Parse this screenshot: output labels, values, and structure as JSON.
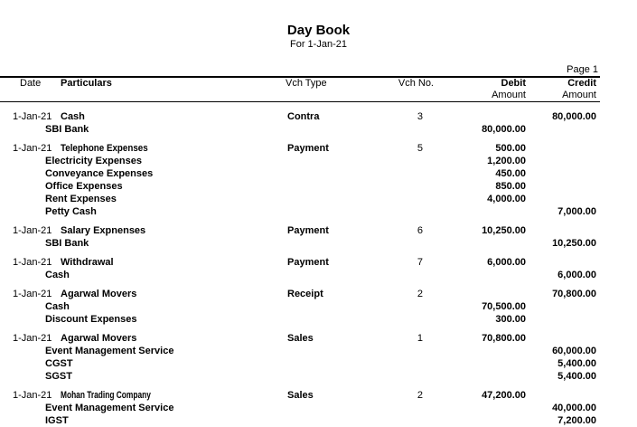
{
  "report": {
    "title": "Day Book",
    "subtitle": "For 1-Jan-21",
    "page_label": "Page 1"
  },
  "table": {
    "headers": {
      "date": "Date",
      "particulars": "Particulars",
      "vch_type": "Vch Type",
      "vch_no": "Vch No.",
      "debit": "Debit",
      "credit": "Credit",
      "amount": "Amount"
    },
    "vouchers": [
      {
        "date": "1-Jan-21",
        "particulars": "Cash",
        "vch_type": "Contra",
        "vch_no": "3",
        "debit": "",
        "credit": "80,000.00",
        "entries": [
          {
            "name": "SBI Bank",
            "debit": "80,000.00",
            "credit": ""
          }
        ]
      },
      {
        "date": "1-Jan-21",
        "particulars": "Telephone Expenses",
        "vch_type": "Payment",
        "vch_no": "5",
        "debit": "500.00",
        "credit": "",
        "entries": [
          {
            "name": "Electricity Expenses",
            "debit": "1,200.00",
            "credit": ""
          },
          {
            "name": "Conveyance Expenses",
            "debit": "450.00",
            "credit": ""
          },
          {
            "name": "Office Expenses",
            "debit": "850.00",
            "credit": ""
          },
          {
            "name": "Rent Expenses",
            "debit": "4,000.00",
            "credit": ""
          },
          {
            "name": "Petty Cash",
            "debit": "",
            "credit": "7,000.00"
          }
        ]
      },
      {
        "date": "1-Jan-21",
        "particulars": "Salary Expnenses",
        "vch_type": "Payment",
        "vch_no": "6",
        "debit": "10,250.00",
        "credit": "",
        "entries": [
          {
            "name": "SBI Bank",
            "debit": "",
            "credit": "10,250.00"
          }
        ]
      },
      {
        "date": "1-Jan-21",
        "particulars": "Withdrawal",
        "vch_type": "Payment",
        "vch_no": "7",
        "debit": "6,000.00",
        "credit": "",
        "entries": [
          {
            "name": "Cash",
            "debit": "",
            "credit": "6,000.00"
          }
        ]
      },
      {
        "date": "1-Jan-21",
        "particulars": "Agarwal Movers",
        "vch_type": "Receipt",
        "vch_no": "2",
        "debit": "",
        "credit": "70,800.00",
        "entries": [
          {
            "name": "Cash",
            "debit": "70,500.00",
            "credit": ""
          },
          {
            "name": "Discount Expenses",
            "debit": "300.00",
            "credit": ""
          }
        ]
      },
      {
        "date": "1-Jan-21",
        "particulars": "Agarwal Movers",
        "vch_type": "Sales",
        "vch_no": "1",
        "debit": "70,800.00",
        "credit": "",
        "entries": [
          {
            "name": "Event Management Service",
            "debit": "",
            "credit": "60,000.00"
          },
          {
            "name": "CGST",
            "debit": "",
            "credit": "5,400.00"
          },
          {
            "name": "SGST",
            "debit": "",
            "credit": "5,400.00"
          }
        ]
      },
      {
        "date": "1-Jan-21",
        "particulars": "Mohan Trading Company",
        "vch_type": "Sales",
        "vch_no": "2",
        "debit": "47,200.00",
        "credit": "",
        "entries": [
          {
            "name": "Event Management Service",
            "debit": "",
            "credit": "40,000.00"
          },
          {
            "name": "IGST",
            "debit": "",
            "credit": "7,200.00"
          }
        ]
      }
    ]
  },
  "colors": {
    "text": "#000000",
    "background": "#ffffff",
    "rule": "#000000"
  }
}
